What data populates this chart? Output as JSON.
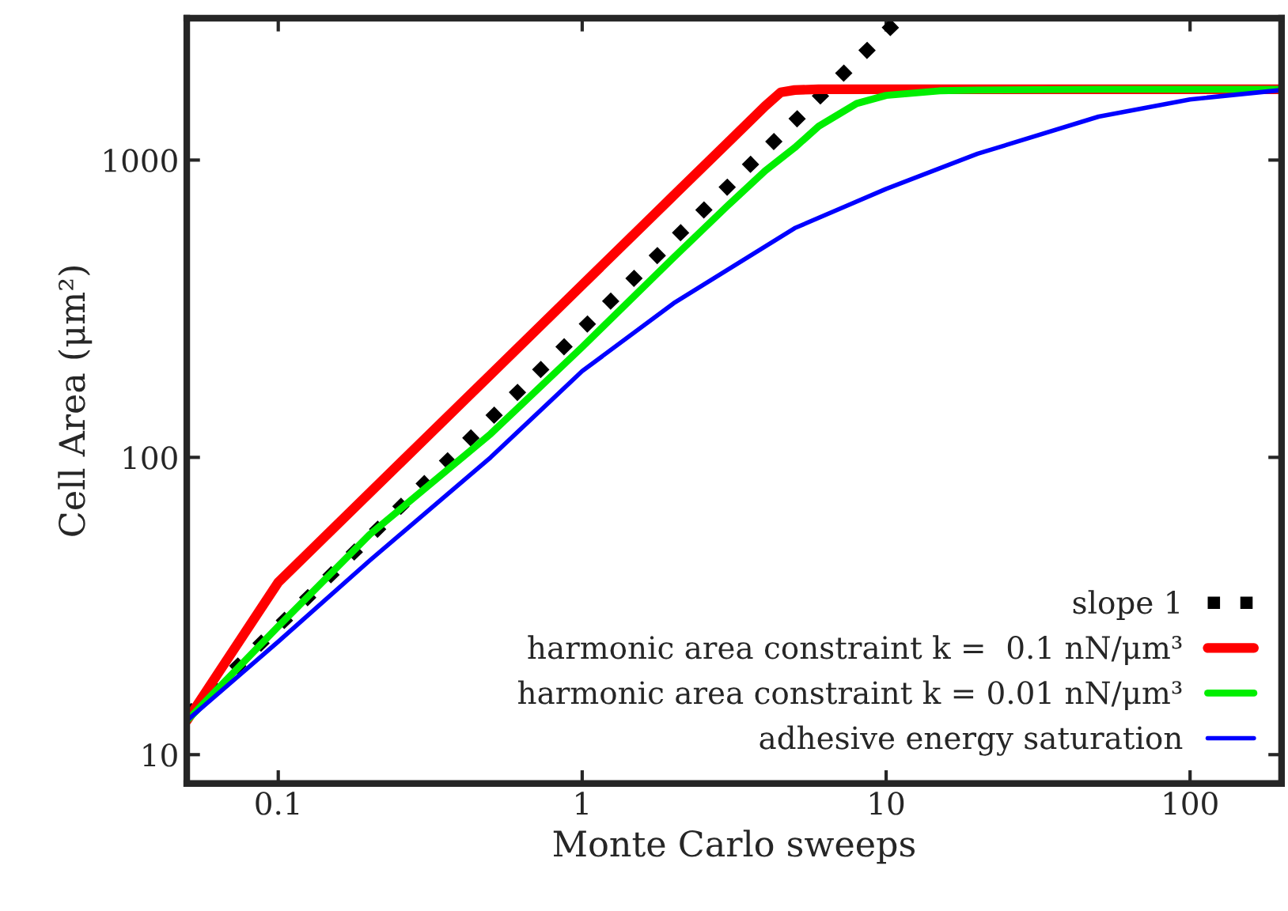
{
  "chart_data": {
    "type": "line",
    "xlabel": "Monte Carlo sweeps",
    "ylabel": "Cell Area (μm²)",
    "log": "xy",
    "xlim": [
      0.05,
      200
    ],
    "ylim": [
      8,
      3000
    ],
    "xticks": [
      0.1,
      1,
      10,
      100
    ],
    "yticks": [
      10,
      100,
      1000
    ],
    "grid": false,
    "legend": "bottom right",
    "marker": "none",
    "series": [
      {
        "name": "slope 1",
        "color": "#000000",
        "line_style": "dotted",
        "x": [
          0.05,
          11.1
        ],
        "values": [
          13.5,
          3000
        ]
      },
      {
        "name": "harmonic area constraint k =  0.1 nN/μm³",
        "color": "#ff0000",
        "line_style": "solid",
        "x": [
          0.05,
          0.1,
          0.2,
          0.5,
          1,
          2,
          3,
          4,
          4.5,
          5,
          6,
          10,
          50,
          200
        ],
        "values": [
          13,
          38,
          76,
          190,
          380,
          760,
          1140,
          1520,
          1690,
          1720,
          1730,
          1730,
          1730,
          1730
        ]
      },
      {
        "name": "harmonic area constraint k = 0.01 nN/μm³",
        "color": "#00ee00",
        "line_style": "solid",
        "x": [
          0.05,
          0.1,
          0.2,
          0.5,
          1,
          2,
          3,
          4,
          5,
          6,
          8,
          10,
          15,
          20,
          50,
          200
        ],
        "values": [
          13,
          27,
          55,
          120,
          235,
          470,
          700,
          920,
          1100,
          1300,
          1550,
          1650,
          1710,
          1720,
          1730,
          1730
        ]
      },
      {
        "name": "adhesive energy saturation",
        "color": "#0000ff",
        "line_style": "solid",
        "x": [
          0.05,
          0.1,
          0.2,
          0.5,
          1,
          2,
          5,
          10,
          20,
          50,
          100,
          200
        ],
        "values": [
          13,
          24,
          45,
          100,
          195,
          330,
          590,
          800,
          1050,
          1400,
          1600,
          1720
        ]
      }
    ]
  }
}
